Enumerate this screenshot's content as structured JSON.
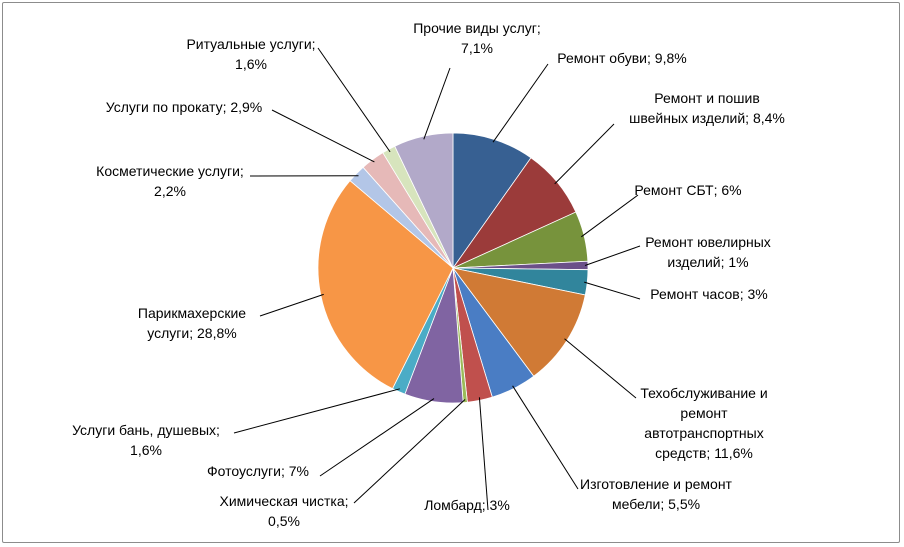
{
  "chart_data": {
    "type": "pie",
    "title": "",
    "colors_note": "slice colors follow Excel default palette",
    "slices": [
      {
        "label": "Ремонт обуви; 9,8%",
        "name": "Ремонт обуви",
        "value": 9.8,
        "color": "#376092"
      },
      {
        "label": "Ремонт и пошив швейных изделий; 8,4%",
        "name": "Ремонт и пошив швейных изделий",
        "value": 8.4,
        "color": "#9b3b3a"
      },
      {
        "label": "Ремонт СБТ; 6%",
        "name": "Ремонт СБТ",
        "value": 6,
        "color": "#77933c"
      },
      {
        "label": "Ремонт ювелирных изделий; 1%",
        "name": "Ремонт ювелирных изделий",
        "value": 1,
        "color": "#6b5089"
      },
      {
        "label": "Ремонт часов; 3%",
        "name": "Ремонт часов",
        "value": 3,
        "color": "#31859c"
      },
      {
        "label": "Техобслуживание и ремонт автотранспортных средств; 11,6%",
        "name": "Техобслуживание и ремонт автотранспортных средств",
        "value": 11.6,
        "color": "#d07a35"
      },
      {
        "label": "Изготовление и ремонт мебели; 5,5%",
        "name": "Изготовление и ремонт мебели",
        "value": 5.5,
        "color": "#4a7dc4"
      },
      {
        "label": "Ломбард; 3%",
        "name": "Ломбард",
        "value": 3,
        "color": "#c0504d"
      },
      {
        "label": "Химическая чистка; 0,5%",
        "name": "Химическая чистка",
        "value": 0.5,
        "color": "#9bbb59"
      },
      {
        "label": "Фотоуслуги; 7%",
        "name": "Фотоуслуги",
        "value": 7,
        "color": "#8064a2"
      },
      {
        "label": "Услуги бань, душевых; 1,6%",
        "name": "Услуги бань, душевых",
        "value": 1.6,
        "color": "#4bacc6"
      },
      {
        "label": "Парикмахерские услуги; 28,8%",
        "name": "Парикмахерские услуги",
        "value": 28.8,
        "color": "#f79646"
      },
      {
        "label": "Косметические услуги; 2,2%",
        "name": "Косметические услуги",
        "value": 2.2,
        "color": "#b3c6e7"
      },
      {
        "label": "Услуги по прокату; 2,9%",
        "name": "Услуги по прокату",
        "value": 2.9,
        "color": "#e6b9b8"
      },
      {
        "label": "Ритуальные услуги; 1,6%",
        "name": "Ритуальные услуги",
        "value": 1.6,
        "color": "#d7e4bd"
      },
      {
        "label": "Прочие виды услуг; 7,1%",
        "name": "Прочие виды услуг",
        "value": 7.1,
        "color": "#b2a9c9"
      }
    ],
    "label_text": [
      [
        "Ремонт обуви; 9,8%"
      ],
      [
        "Ремонт и пошив",
        "швейных изделий; 8,4%"
      ],
      [
        "Ремонт СБТ; 6%"
      ],
      [
        "Ремонт ювелирных",
        "изделий; 1%"
      ],
      [
        "Ремонт часов; 3%"
      ],
      [
        "Техобслуживание и",
        "ремонт",
        "автотранспортных",
        "средств; 11,6%"
      ],
      [
        "Изготовление и ремонт",
        "мебели; 5,5%"
      ],
      [
        "Ломбард; 3%"
      ],
      [
        "Химическая чистка;",
        "0,5%"
      ],
      [
        "Фотоуслуги; 7%"
      ],
      [
        "Услуги бань, душевых;",
        "1,6%"
      ],
      [
        "Парикмахерские",
        "услуги; 28,8%"
      ],
      [
        "Косметические услуги;",
        "2,2%"
      ],
      [
        "Услуги по прокату; 2,9%"
      ],
      [
        "Ритуальные услуги;",
        "1,6%"
      ],
      [
        "Прочие виды услуг;",
        "7,1%"
      ]
    ],
    "legend": "none"
  }
}
